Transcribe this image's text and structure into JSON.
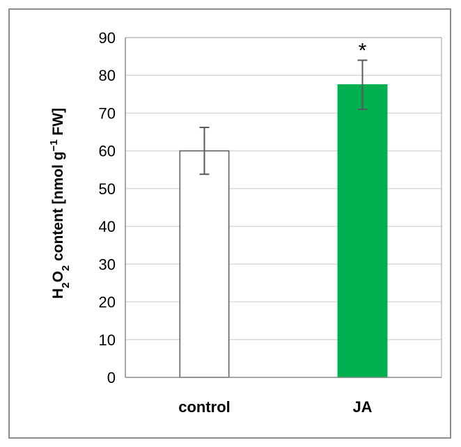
{
  "chart_data": {
    "type": "bar",
    "categories": [
      "control",
      "JA"
    ],
    "values": [
      60,
      77.5
    ],
    "errors": [
      6.2,
      6.5
    ],
    "bar_colors": [
      "#ffffff",
      "#00b050"
    ],
    "annotations": [
      "",
      "*"
    ],
    "ylabel_parts": {
      "p1": "H",
      "sub1": "2",
      "p2": "O",
      "sub2": "2",
      "p3": " content [nmol g",
      "sup": "−1",
      "p4": " FW]"
    },
    "ylim": [
      0,
      90
    ],
    "yticks": [
      0,
      10,
      20,
      30,
      40,
      50,
      60,
      70,
      80,
      90
    ],
    "grid": true,
    "legend": "none"
  }
}
